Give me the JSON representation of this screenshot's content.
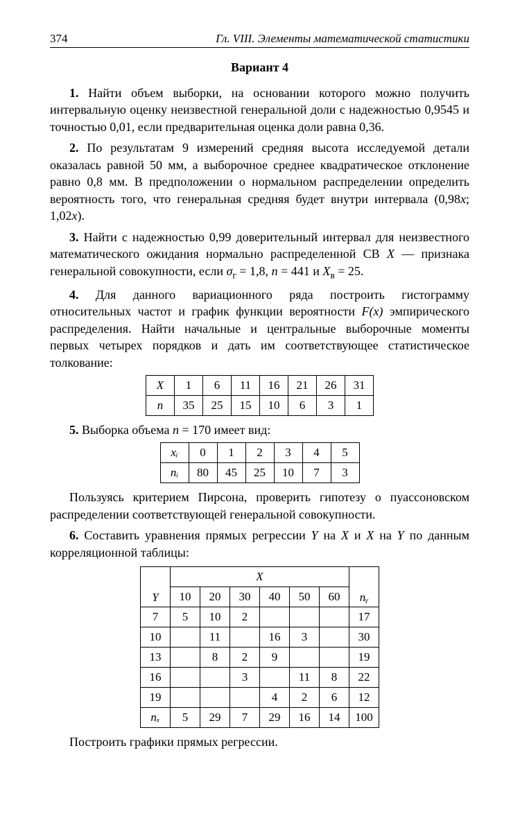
{
  "header": {
    "page_number": "374",
    "chapter": "Гл. VIII. Элементы математической статистики"
  },
  "title": "Вариант 4",
  "p1": {
    "num": "1.",
    "text": "Найти объем выборки, на основании которого можно получить интервальную оценку неизвестной генеральной доли с надежностью 0,9545 и точностью 0,01, если предварительная оценка доли равна 0,36."
  },
  "p2": {
    "num": "2.",
    "text_a": "По результатам 9 измерений средняя высота исследуемой детали оказалась равной 50 мм, а выборочное среднее квадратическое отклонение равно 0,8 мм. В предположении о нормальном распределении определить вероятность того, что генеральная средняя будет внутри интервала (0,98",
    "x1": "x",
    "sep": "; 1,02",
    "x2": "x",
    "close": ")."
  },
  "p3": {
    "num": "3.",
    "text_a": "Найти с надежностью 0,99 доверительный интервал для неизвестного математического ожидания нормально распределенной СВ ",
    "Xsym": "X",
    "text_b": " — признака генеральной совокупности, если ",
    "sigma": "σ",
    "sigma_sub": "г",
    "eq1": " = 1,8, ",
    "nvar": "n",
    "eq2": " = 441 и ",
    "Xbar": "X",
    "Xbar_sub": "в",
    "eq3": " = 25."
  },
  "p4": {
    "num": "4.",
    "text": "Для данного вариационного ряда построить гистограмму относительных частот и график функции вероятности ",
    "Fx": "F(x)",
    "text2": " эмпирического распределения. Найти начальные и центральные выборочные моменты первых четырех порядков и дать им соответствующее статистическое толкование:"
  },
  "table4": {
    "row_labels": [
      "X",
      "n"
    ],
    "row1": [
      "1",
      "6",
      "11",
      "16",
      "21",
      "26",
      "31"
    ],
    "row2": [
      "35",
      "25",
      "15",
      "10",
      "6",
      "3",
      "1"
    ]
  },
  "p5": {
    "num": "5.",
    "text_a": "Выборка объема ",
    "nvar": "n",
    "eq": " = 170 имеет вид:"
  },
  "table5": {
    "row_labels": [
      "xᵢ",
      "nᵢ"
    ],
    "row1": [
      "0",
      "1",
      "2",
      "3",
      "4",
      "5"
    ],
    "row2": [
      "80",
      "45",
      "25",
      "10",
      "7",
      "3"
    ]
  },
  "p5b": "Пользуясь критерием Пирсона, проверить гипотезу о пуассоновском распределении соответствующей генеральной совокупности.",
  "p6": {
    "num": "6.",
    "text_a": "Составить уравнения прямых регрессии ",
    "Y1": "Y",
    "on1": " на ",
    "X1": "X",
    "and": " и ",
    "X2": "X",
    "on2": " на ",
    "Y2": "Y",
    "text_b": " по данным корреляционной таблицы:"
  },
  "table6": {
    "X_label": "X",
    "Y_label": "Y",
    "ny_label": "nᵧ",
    "nx_label": "nₓ",
    "x_headers": [
      "10",
      "20",
      "30",
      "40",
      "50",
      "60"
    ],
    "y_headers": [
      "7",
      "10",
      "13",
      "16",
      "19"
    ],
    "rows": [
      [
        "5",
        "10",
        "2",
        "",
        "",
        "",
        "17"
      ],
      [
        "",
        "11",
        "",
        "16",
        "3",
        "",
        "30"
      ],
      [
        "",
        "8",
        "2",
        "9",
        "",
        "",
        "19"
      ],
      [
        "",
        "",
        "3",
        "",
        "11",
        "8",
        "22"
      ],
      [
        "",
        "",
        "",
        "4",
        "2",
        "6",
        "12"
      ]
    ],
    "nx_row": [
      "5",
      "29",
      "7",
      "29",
      "16",
      "14",
      "100"
    ]
  },
  "p6b": "Построить графики прямых регрессии."
}
